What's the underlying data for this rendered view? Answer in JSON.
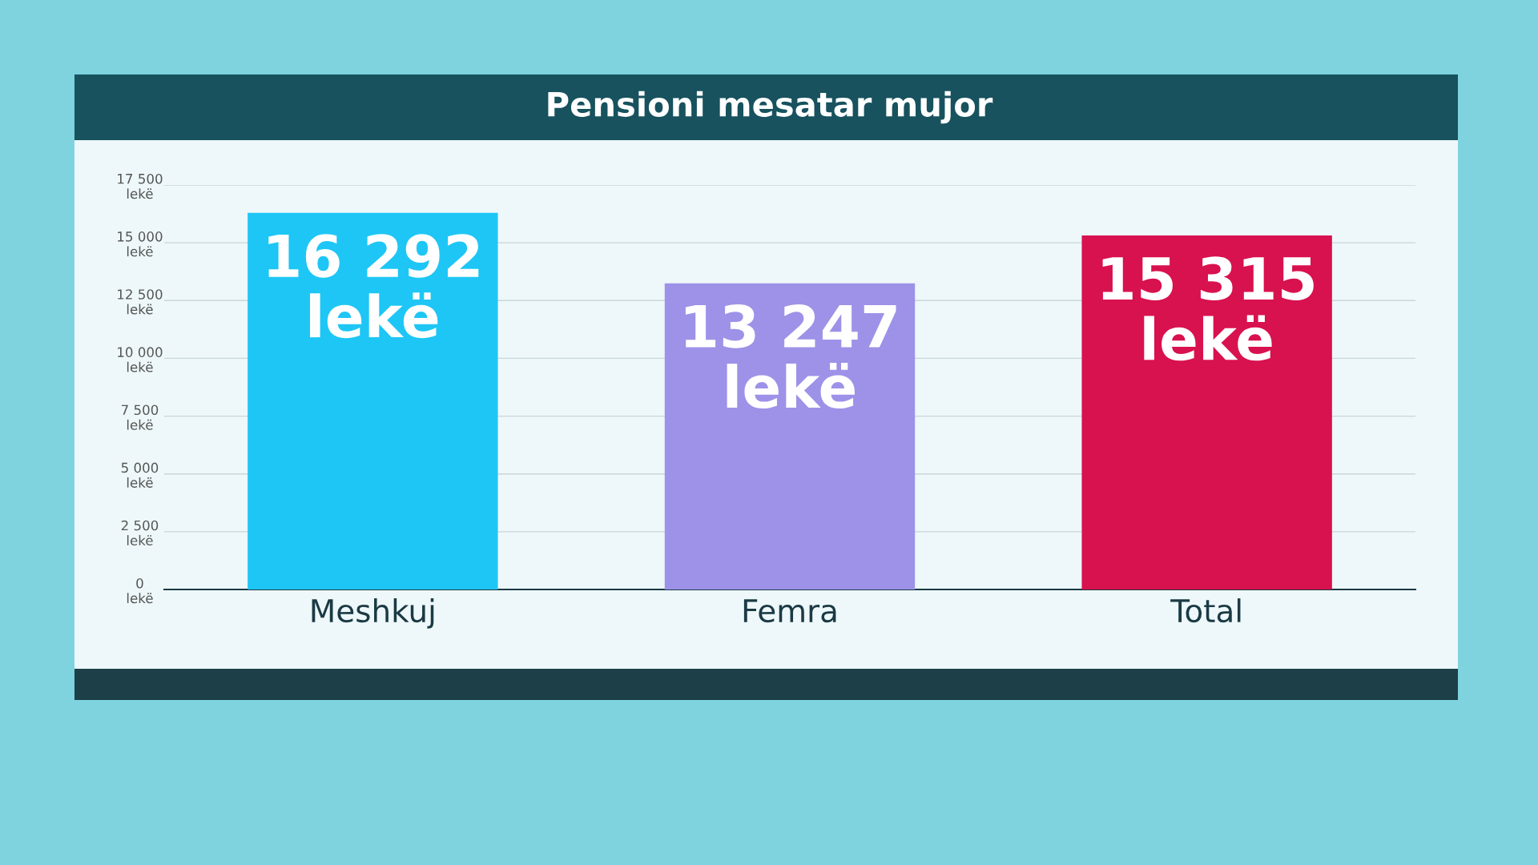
{
  "chart_data": {
    "type": "bar",
    "title": "Pensioni mesatar mujor",
    "categories": [
      "Meshkuj",
      "Femra",
      "Total"
    ],
    "values": [
      16292,
      13247,
      15315
    ],
    "colors": [
      "#1ec6f5",
      "#9d92e8",
      "#d8114f"
    ],
    "value_labels": [
      "16 292\nlekë",
      "13 247\nlekë",
      "15 315\nlekë"
    ],
    "ylim": [
      0,
      17500
    ],
    "yticks": [
      {
        "value": 0,
        "label": "0\nlekë"
      },
      {
        "value": 2500,
        "label": "2 500\nlekë"
      },
      {
        "value": 5000,
        "label": "5 000\nlekë"
      },
      {
        "value": 7500,
        "label": "7 500\nlekë"
      },
      {
        "value": 10000,
        "label": "10 000\nlekë"
      },
      {
        "value": 12500,
        "label": "12 500\nlekë"
      },
      {
        "value": 15000,
        "label": "15 000\nlekë"
      },
      {
        "value": 17500,
        "label": "17 500\nlekë"
      }
    ],
    "grid": "y"
  }
}
